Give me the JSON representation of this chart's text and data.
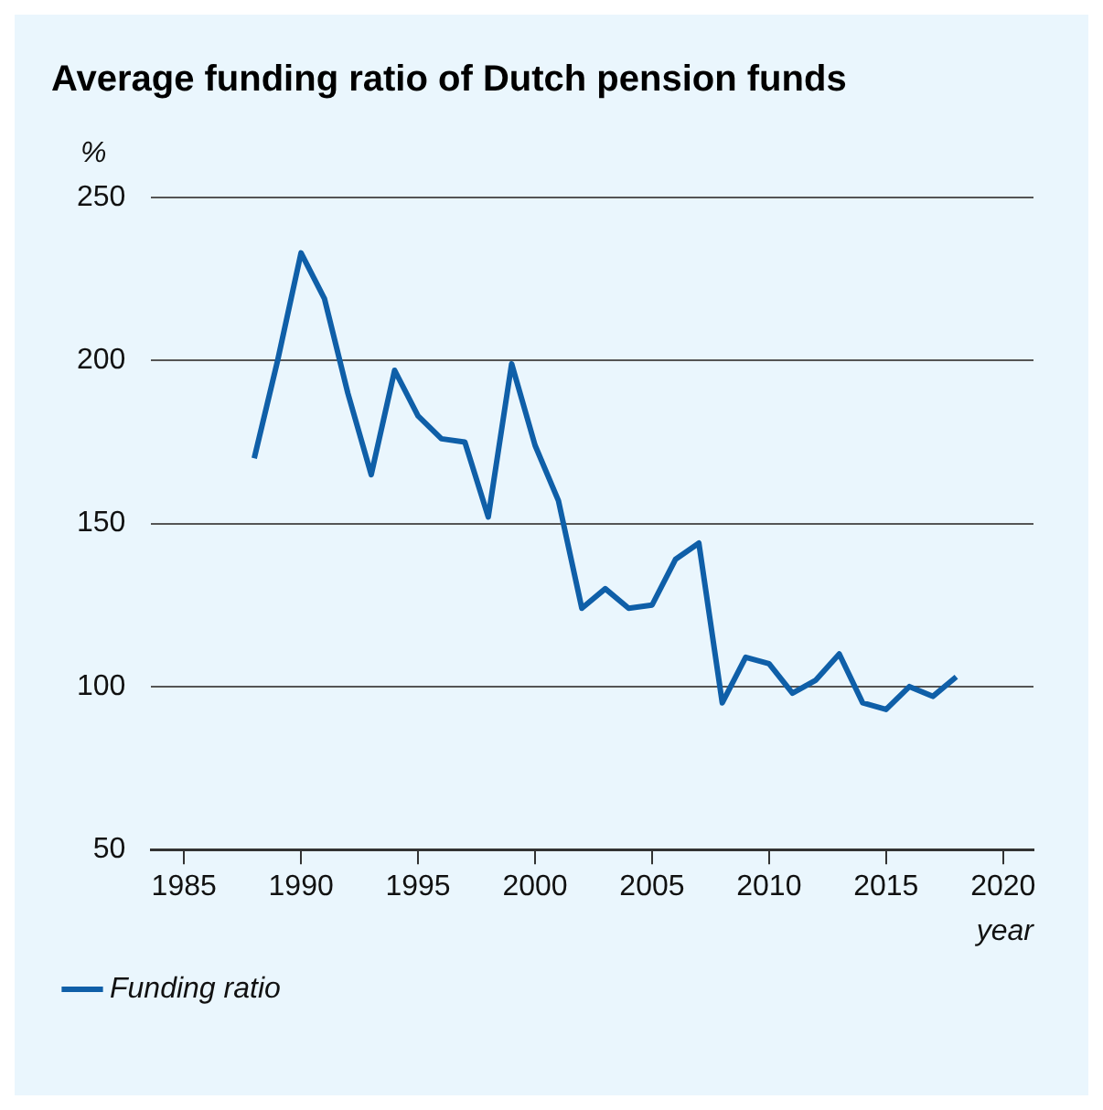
{
  "chart_data": {
    "type": "line",
    "title": "Average funding ratio of Dutch pension funds",
    "ylabel": "%",
    "xlabel": "year",
    "x": [
      1988,
      1989,
      1990,
      1991,
      1992,
      1993,
      1994,
      1995,
      1996,
      1997,
      1998,
      1999,
      2000,
      2001,
      2002,
      2003,
      2004,
      2005,
      2006,
      2007,
      2008,
      2009,
      2010,
      2011,
      2012,
      2013,
      2014,
      2015,
      2016,
      2017,
      2018
    ],
    "series": [
      {
        "name": "Funding ratio",
        "color": "#0f5fa8",
        "values": [
          170,
          200,
          233,
          219,
          190,
          165,
          197,
          183,
          176,
          175,
          152,
          199,
          174,
          157,
          124,
          130,
          124,
          125,
          139,
          144,
          95,
          109,
          107,
          98,
          102,
          110,
          95,
          93,
          100,
          97,
          103
        ]
      }
    ],
    "xlim": [
      1983.6,
      2021.3
    ],
    "xticks": [
      1985,
      1990,
      1995,
      2000,
      2005,
      2010,
      2015,
      2020
    ],
    "ylim": [
      50,
      250
    ],
    "yticks": [
      50,
      100,
      150,
      200,
      250
    ],
    "grid": "y",
    "legend": "bottom left",
    "marker": "none",
    "line_style": "solid"
  }
}
